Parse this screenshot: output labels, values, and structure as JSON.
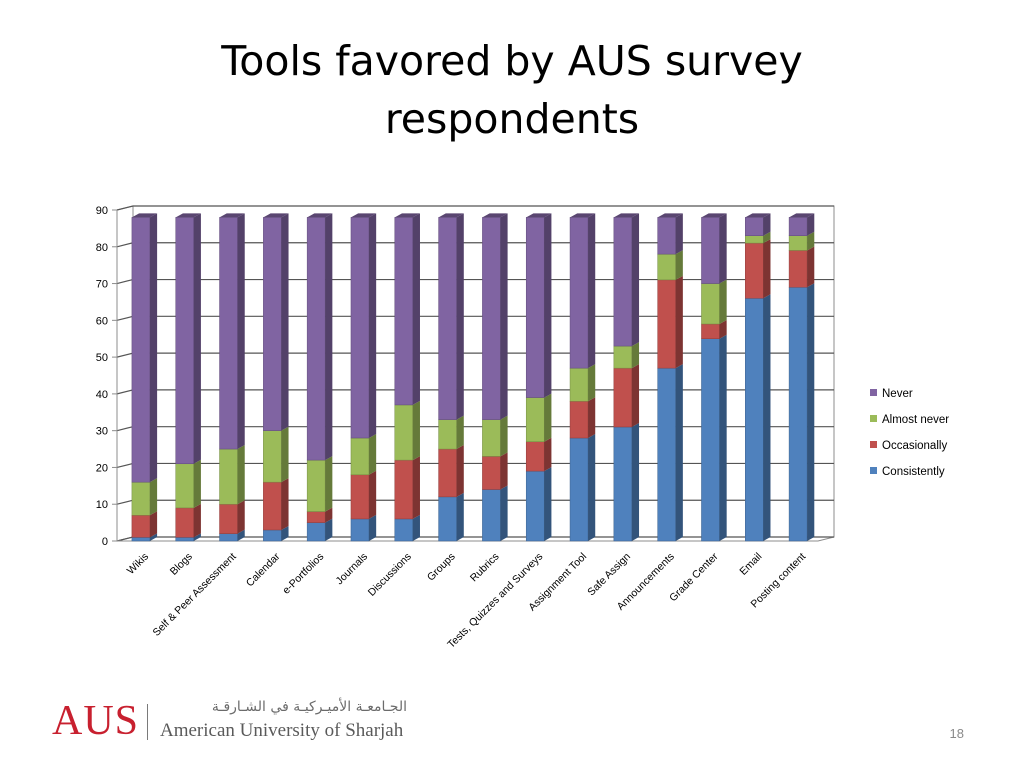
{
  "slide": {
    "title_line1": "Tools favored by AUS survey",
    "title_line2": "respondents",
    "page_number": "18"
  },
  "logo": {
    "abbr": "AUS",
    "arabic_name": "الجـامعـة الأميـركيـة في الشـارقـة",
    "english_name": "American University of Sharjah"
  },
  "colors": {
    "Consistently": "#4f81bd",
    "Occasionally": "#c0504d",
    "Almost never": "#9bbb59",
    "Never": "#8064a2"
  },
  "chart_data": {
    "type": "bar",
    "stacked": true,
    "three_d": true,
    "categories": [
      "Wikis",
      "Blogs",
      "Self & Peer Assessment",
      "Calendar",
      "e-Portfolios",
      "Journals",
      "Discussions",
      "Groups",
      "Rubrics",
      "Tests, Quizzes and Surveys",
      "Assignment Tool",
      "Safe Assign",
      "Announcements",
      "Grade Center",
      "Email",
      "Posting content"
    ],
    "series": [
      {
        "name": "Consistently",
        "values": [
          1,
          1,
          2,
          3,
          5,
          6,
          6,
          12,
          14,
          19,
          28,
          31,
          47,
          55,
          66,
          69
        ]
      },
      {
        "name": "Occasionally",
        "values": [
          6,
          8,
          8,
          13,
          3,
          12,
          16,
          13,
          9,
          8,
          10,
          16,
          24,
          4,
          15,
          10
        ]
      },
      {
        "name": "Almost never",
        "values": [
          9,
          12,
          15,
          14,
          14,
          10,
          15,
          8,
          10,
          12,
          9,
          6,
          7,
          11,
          2,
          4
        ]
      },
      {
        "name": "Never",
        "values": [
          72,
          67,
          63,
          58,
          66,
          60,
          51,
          55,
          55,
          49,
          41,
          35,
          10,
          18,
          5,
          5
        ]
      }
    ],
    "legend_order": [
      "Never",
      "Almost never",
      "Occasionally",
      "Consistently"
    ],
    "yticks": [
      0,
      10,
      20,
      30,
      40,
      50,
      60,
      70,
      80,
      90
    ],
    "ylim": [
      0,
      90
    ],
    "grid": true,
    "legend_position": "right"
  }
}
